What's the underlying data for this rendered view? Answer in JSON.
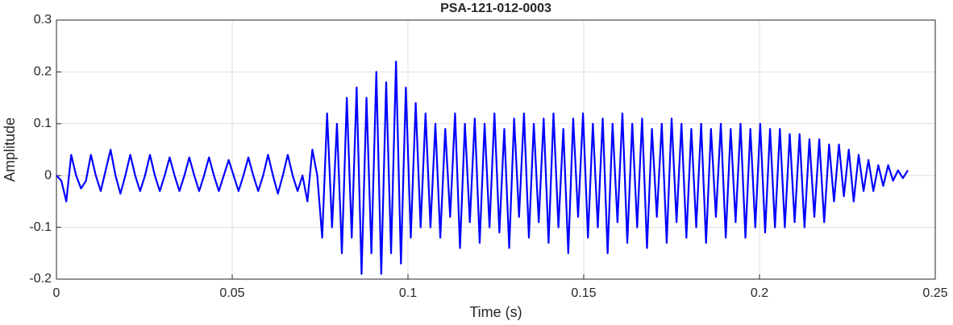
{
  "chart_data": {
    "type": "line",
    "title": "PSA-121-012-0003",
    "xlabel": "Time (s)",
    "ylabel": "Amplitude",
    "grid": true,
    "xlim": [
      0,
      0.25
    ],
    "xticks": [
      0,
      0.05,
      0.1,
      0.15,
      0.2,
      0.25
    ],
    "ylim": [
      -0.2,
      0.3
    ],
    "yticks": [
      -0.2,
      -0.1,
      0,
      0.1,
      0.2,
      0.3
    ],
    "x": [
      0,
      0.0014,
      0.0028,
      0.0042,
      0.0056,
      0.007,
      0.0084,
      0.0098,
      0.0112,
      0.0126,
      0.014,
      0.0154,
      0.0168,
      0.0182,
      0.0196,
      0.021,
      0.0224,
      0.0238,
      0.0252,
      0.0266,
      0.028,
      0.0294,
      0.0308,
      0.0322,
      0.0336,
      0.035,
      0.0364,
      0.0378,
      0.0392,
      0.0406,
      0.042,
      0.0434,
      0.0448,
      0.0462,
      0.0476,
      0.049,
      0.0504,
      0.0518,
      0.0532,
      0.0546,
      0.056,
      0.0574,
      0.0588,
      0.0602,
      0.0616,
      0.063,
      0.0644,
      0.0658,
      0.0672,
      0.0686,
      0.07,
      0.0714,
      0.0728,
      0.0742,
      0.0756,
      0.077,
      0.0784,
      0.0798,
      0.0812,
      0.0826,
      0.084,
      0.0854,
      0.0868,
      0.0882,
      0.0896,
      0.091,
      0.0924,
      0.0938,
      0.0952,
      0.0966,
      0.098,
      0.0994,
      0.1008,
      0.1022,
      0.1036,
      0.105,
      0.1064,
      0.1078,
      0.1092,
      0.1106,
      0.112,
      0.1134,
      0.1148,
      0.1162,
      0.1176,
      0.119,
      0.1204,
      0.1218,
      0.1232,
      0.1246,
      0.126,
      0.1274,
      0.1288,
      0.1302,
      0.1316,
      0.133,
      0.1344,
      0.1358,
      0.1372,
      0.1386,
      0.14,
      0.1414,
      0.1428,
      0.1442,
      0.1456,
      0.147,
      0.1484,
      0.1498,
      0.1512,
      0.1526,
      0.154,
      0.1554,
      0.1568,
      0.1582,
      0.1596,
      0.161,
      0.1624,
      0.1638,
      0.1652,
      0.1666,
      0.168,
      0.1694,
      0.1708,
      0.1722,
      0.1736,
      0.175,
      0.1764,
      0.1778,
      0.1792,
      0.1806,
      0.182,
      0.1834,
      0.1848,
      0.1862,
      0.1876,
      0.189,
      0.1904,
      0.1918,
      0.1932,
      0.1946,
      0.196,
      0.1974,
      0.1988,
      0.2002,
      0.2016,
      0.203,
      0.2044,
      0.2058,
      0.2072,
      0.2086,
      0.21,
      0.2114,
      0.2128,
      0.2142,
      0.2156,
      0.217,
      0.2184,
      0.2198,
      0.2212,
      0.2226,
      0.224,
      0.2254,
      0.2268,
      0.2282,
      0.2296,
      0.231,
      0.2324,
      0.2338,
      0.2352,
      0.2366,
      0.238,
      0.2394,
      0.2408,
      0.2422
    ],
    "series": [
      {
        "color": "#0000ff",
        "values": [
          0,
          -0.01,
          -0.05,
          0.04,
          0,
          -0.025,
          -0.01,
          0.04,
          0,
          -0.03,
          0.01,
          0.05,
          0,
          -0.035,
          0,
          0.04,
          0,
          -0.03,
          0,
          0.04,
          0,
          -0.03,
          0,
          0.035,
          0,
          -0.03,
          0,
          0.035,
          0,
          -0.03,
          0,
          0.035,
          0,
          -0.03,
          0,
          0.03,
          0,
          -0.03,
          0,
          0.035,
          0,
          -0.03,
          0,
          0.04,
          0,
          -0.035,
          0,
          0.04,
          0,
          -0.03,
          0,
          -0.05,
          0.05,
          0,
          -0.12,
          0.12,
          -0.1,
          0.1,
          -0.15,
          0.15,
          -0.12,
          0.17,
          -0.19,
          0.15,
          -0.15,
          0.2,
          -0.19,
          0.18,
          -0.15,
          0.22,
          -0.17,
          0.17,
          -0.12,
          0.14,
          -0.1,
          0.12,
          -0.1,
          0.1,
          -0.12,
          0.09,
          -0.08,
          0.12,
          -0.14,
          0.1,
          -0.09,
          0.11,
          -0.13,
          0.1,
          -0.1,
          0.12,
          -0.11,
          0.09,
          -0.14,
          0.11,
          -0.08,
          0.12,
          -0.12,
          0.1,
          -0.09,
          0.11,
          -0.13,
          0.12,
          -0.1,
          0.09,
          -0.15,
          0.11,
          -0.08,
          0.12,
          -0.12,
          0.1,
          -0.1,
          0.11,
          -0.15,
          0.1,
          -0.09,
          0.12,
          -0.13,
          0.1,
          -0.1,
          0.11,
          -0.14,
          0.09,
          -0.08,
          0.1,
          -0.13,
          0.11,
          -0.09,
          0.1,
          -0.12,
          0.09,
          -0.1,
          0.1,
          -0.13,
          0.09,
          -0.08,
          0.1,
          -0.12,
          0.09,
          -0.09,
          0.1,
          -0.12,
          0.09,
          -0.1,
          0.1,
          -0.11,
          0.09,
          -0.1,
          0.09,
          -0.1,
          0.08,
          -0.09,
          0.08,
          -0.1,
          0.07,
          -0.08,
          0.07,
          -0.09,
          0.06,
          -0.05,
          0.06,
          -0.04,
          0.05,
          -0.05,
          0.04,
          -0.03,
          0.03,
          -0.03,
          0.02,
          -0.02,
          0.02,
          -0.01,
          0.01,
          -0.005,
          0.01
        ]
      }
    ]
  }
}
